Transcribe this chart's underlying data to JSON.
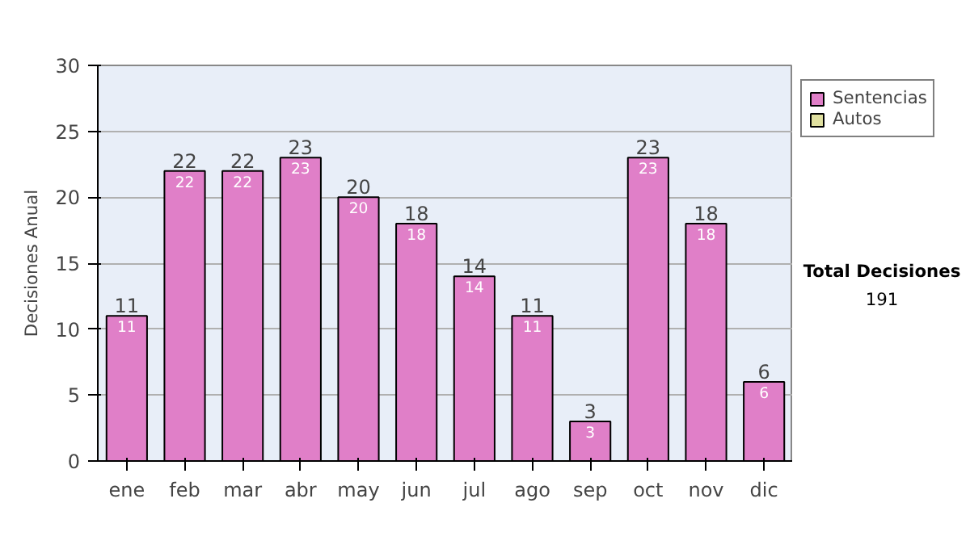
{
  "chart_data": {
    "type": "bar",
    "stacked": true,
    "ylabel": "Decisiones Anual",
    "categories": [
      "ene",
      "feb",
      "mar",
      "abr",
      "may",
      "jun",
      "jul",
      "ago",
      "sep",
      "oct",
      "nov",
      "dic"
    ],
    "series": [
      {
        "name": "Sentencias",
        "color": "#e07fc8",
        "values": [
          11,
          22,
          22,
          23,
          20,
          18,
          14,
          11,
          3,
          23,
          18,
          6
        ],
        "value_labels": [
          "11",
          "22",
          "22",
          "23",
          "20",
          "18",
          "14",
          "11",
          "3",
          "23",
          "18",
          "6"
        ]
      },
      {
        "name": "Autos",
        "color": "#e0e0a0",
        "values": [
          0,
          0,
          0,
          0,
          0,
          0,
          0,
          0,
          0,
          0,
          0,
          0
        ]
      }
    ],
    "totals": [
      "11",
      "22",
      "22",
      "23",
      "20",
      "18",
      "14",
      "11",
      "3",
      "23",
      "18",
      "6"
    ],
    "ylim": [
      0,
      30
    ],
    "yticks": [
      0,
      5,
      10,
      15,
      20,
      25,
      30
    ],
    "grid": "y",
    "legend": "right",
    "annotations": [
      "Total Decisiones",
      "191"
    ]
  }
}
